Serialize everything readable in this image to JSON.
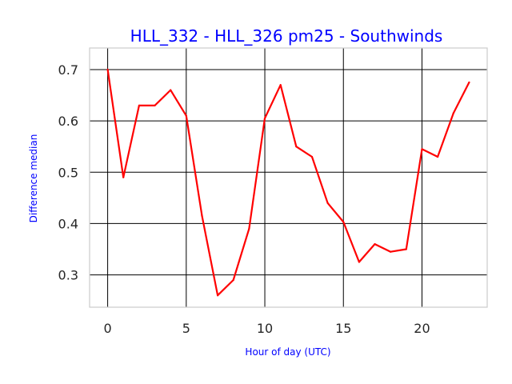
{
  "chart_data": {
    "type": "line",
    "title": "HLL_332 - HLL_326 pm25 - Southwinds",
    "xlabel": "Hour of day (UTC)",
    "ylabel": "Difference median",
    "xlim": [
      -1.15,
      24.15
    ],
    "ylim": [
      0.237,
      0.742
    ],
    "xticks": [
      0,
      5,
      10,
      15,
      20
    ],
    "yticks": [
      0.3,
      0.4,
      0.5,
      0.6,
      0.7
    ],
    "xtick_labels": [
      "0",
      "5",
      "10",
      "15",
      "20"
    ],
    "ytick_labels": [
      "0.3",
      "0.4",
      "0.5",
      "0.6",
      "0.7"
    ],
    "grid": true,
    "legend": false,
    "series": [
      {
        "color": "#ff0000",
        "x": [
          0,
          1,
          2,
          3,
          4,
          5,
          6,
          7,
          8,
          9,
          10,
          11,
          12,
          13,
          14,
          15,
          16,
          17,
          18,
          19,
          20,
          21,
          22,
          23
        ],
        "values": [
          0.7,
          0.49,
          0.63,
          0.63,
          0.66,
          0.61,
          0.415,
          0.26,
          0.29,
          0.39,
          0.605,
          0.67,
          0.55,
          0.53,
          0.44,
          0.403,
          0.325,
          0.36,
          0.345,
          0.35,
          0.545,
          0.53,
          0.615,
          0.675
        ]
      }
    ]
  }
}
